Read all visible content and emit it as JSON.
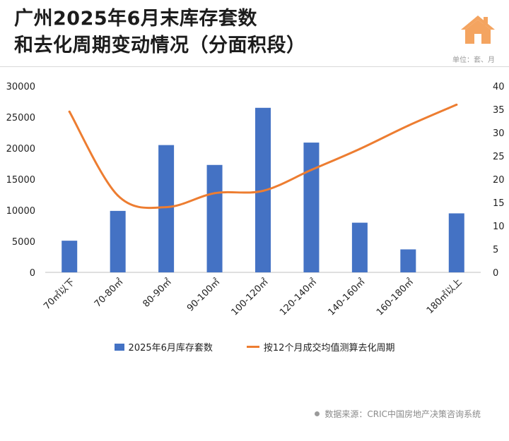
{
  "title": {
    "line1": "广州2025年6月末库存套数",
    "line2": "和去化周期变动情况（分面积段）"
  },
  "unit": "单位：套、月",
  "source": "数据来源：CRIC中国房地产决策咨询系统",
  "colors": {
    "bar": "#4472C4",
    "line": "#ED7D31",
    "icon": "#F4A460",
    "grid": "#d9d9d9"
  },
  "icons": {
    "brand": "house-icon"
  },
  "chart_data": {
    "type": "bar",
    "categories": [
      "70㎡以下",
      "70-80㎡",
      "80-90㎡",
      "90-100㎡",
      "100-120㎡",
      "120-140㎡",
      "140-160㎡",
      "160-180㎡",
      "180㎡以上"
    ],
    "series": [
      {
        "name": "2025年6月库存套数",
        "type": "bar",
        "axis": "left",
        "values": [
          5100,
          9900,
          20500,
          17300,
          26500,
          20900,
          8000,
          3700,
          9500
        ]
      },
      {
        "name": "按12个月成交均值测算去化周期",
        "type": "line",
        "axis": "right",
        "smooth": true,
        "values": [
          34.5,
          16.5,
          14,
          17,
          17.5,
          22,
          26.5,
          31.5,
          36
        ]
      }
    ],
    "y_left": {
      "min": 0,
      "max": 30000,
      "ticks": [
        0,
        5000,
        10000,
        15000,
        20000,
        25000,
        30000
      ]
    },
    "y_right": {
      "min": 0,
      "max": 40,
      "ticks": [
        0,
        5,
        10,
        15,
        20,
        25,
        30,
        35,
        40
      ]
    },
    "grid": false,
    "legend_position": "bottom"
  }
}
